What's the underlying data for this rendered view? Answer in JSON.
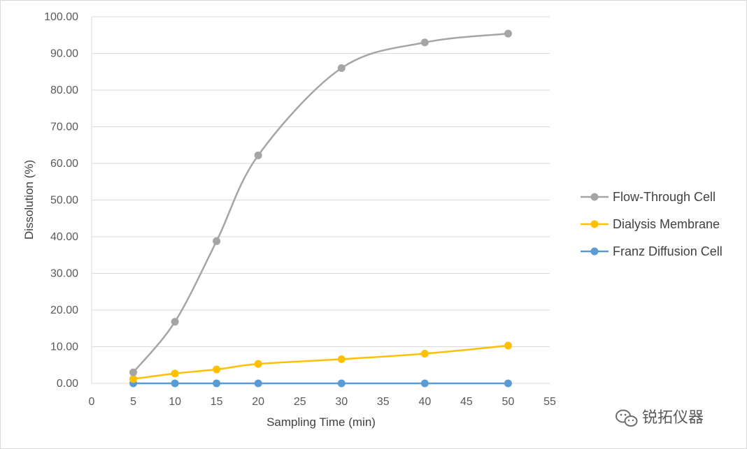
{
  "chart_data": {
    "type": "line",
    "xlabel": "Sampling Time (min)",
    "ylabel": "Dissolution (%)",
    "xlim": [
      0,
      55
    ],
    "ylim": [
      0,
      100
    ],
    "x_ticks": [
      "0",
      "5",
      "10",
      "15",
      "20",
      "25",
      "30",
      "35",
      "40",
      "45",
      "50",
      "55"
    ],
    "y_ticks": [
      "0.00",
      "10.00",
      "20.00",
      "30.00",
      "40.00",
      "50.00",
      "60.00",
      "70.00",
      "80.00",
      "90.00",
      "100.00"
    ],
    "grid": true,
    "legend_position": "right",
    "x": [
      5,
      10,
      15,
      20,
      30,
      40,
      50
    ],
    "series": [
      {
        "name": "Flow-Through Cell",
        "color": "#a5a5a5",
        "values": [
          3.0,
          16.8,
          38.8,
          62.2,
          86.0,
          93.0,
          95.4
        ]
      },
      {
        "name": "Dialysis Membrane",
        "color": "#ffc000",
        "values": [
          1.2,
          2.7,
          3.8,
          5.3,
          6.6,
          8.1,
          10.3
        ]
      },
      {
        "name": "Franz Diffusion Cell",
        "color": "#5b9bd5",
        "values": [
          0.0,
          0.0,
          0.0,
          0.0,
          0.0,
          0.0,
          0.0
        ]
      }
    ]
  },
  "watermark": {
    "text": "锐拓仪器",
    "icon": "wechat-icon"
  }
}
